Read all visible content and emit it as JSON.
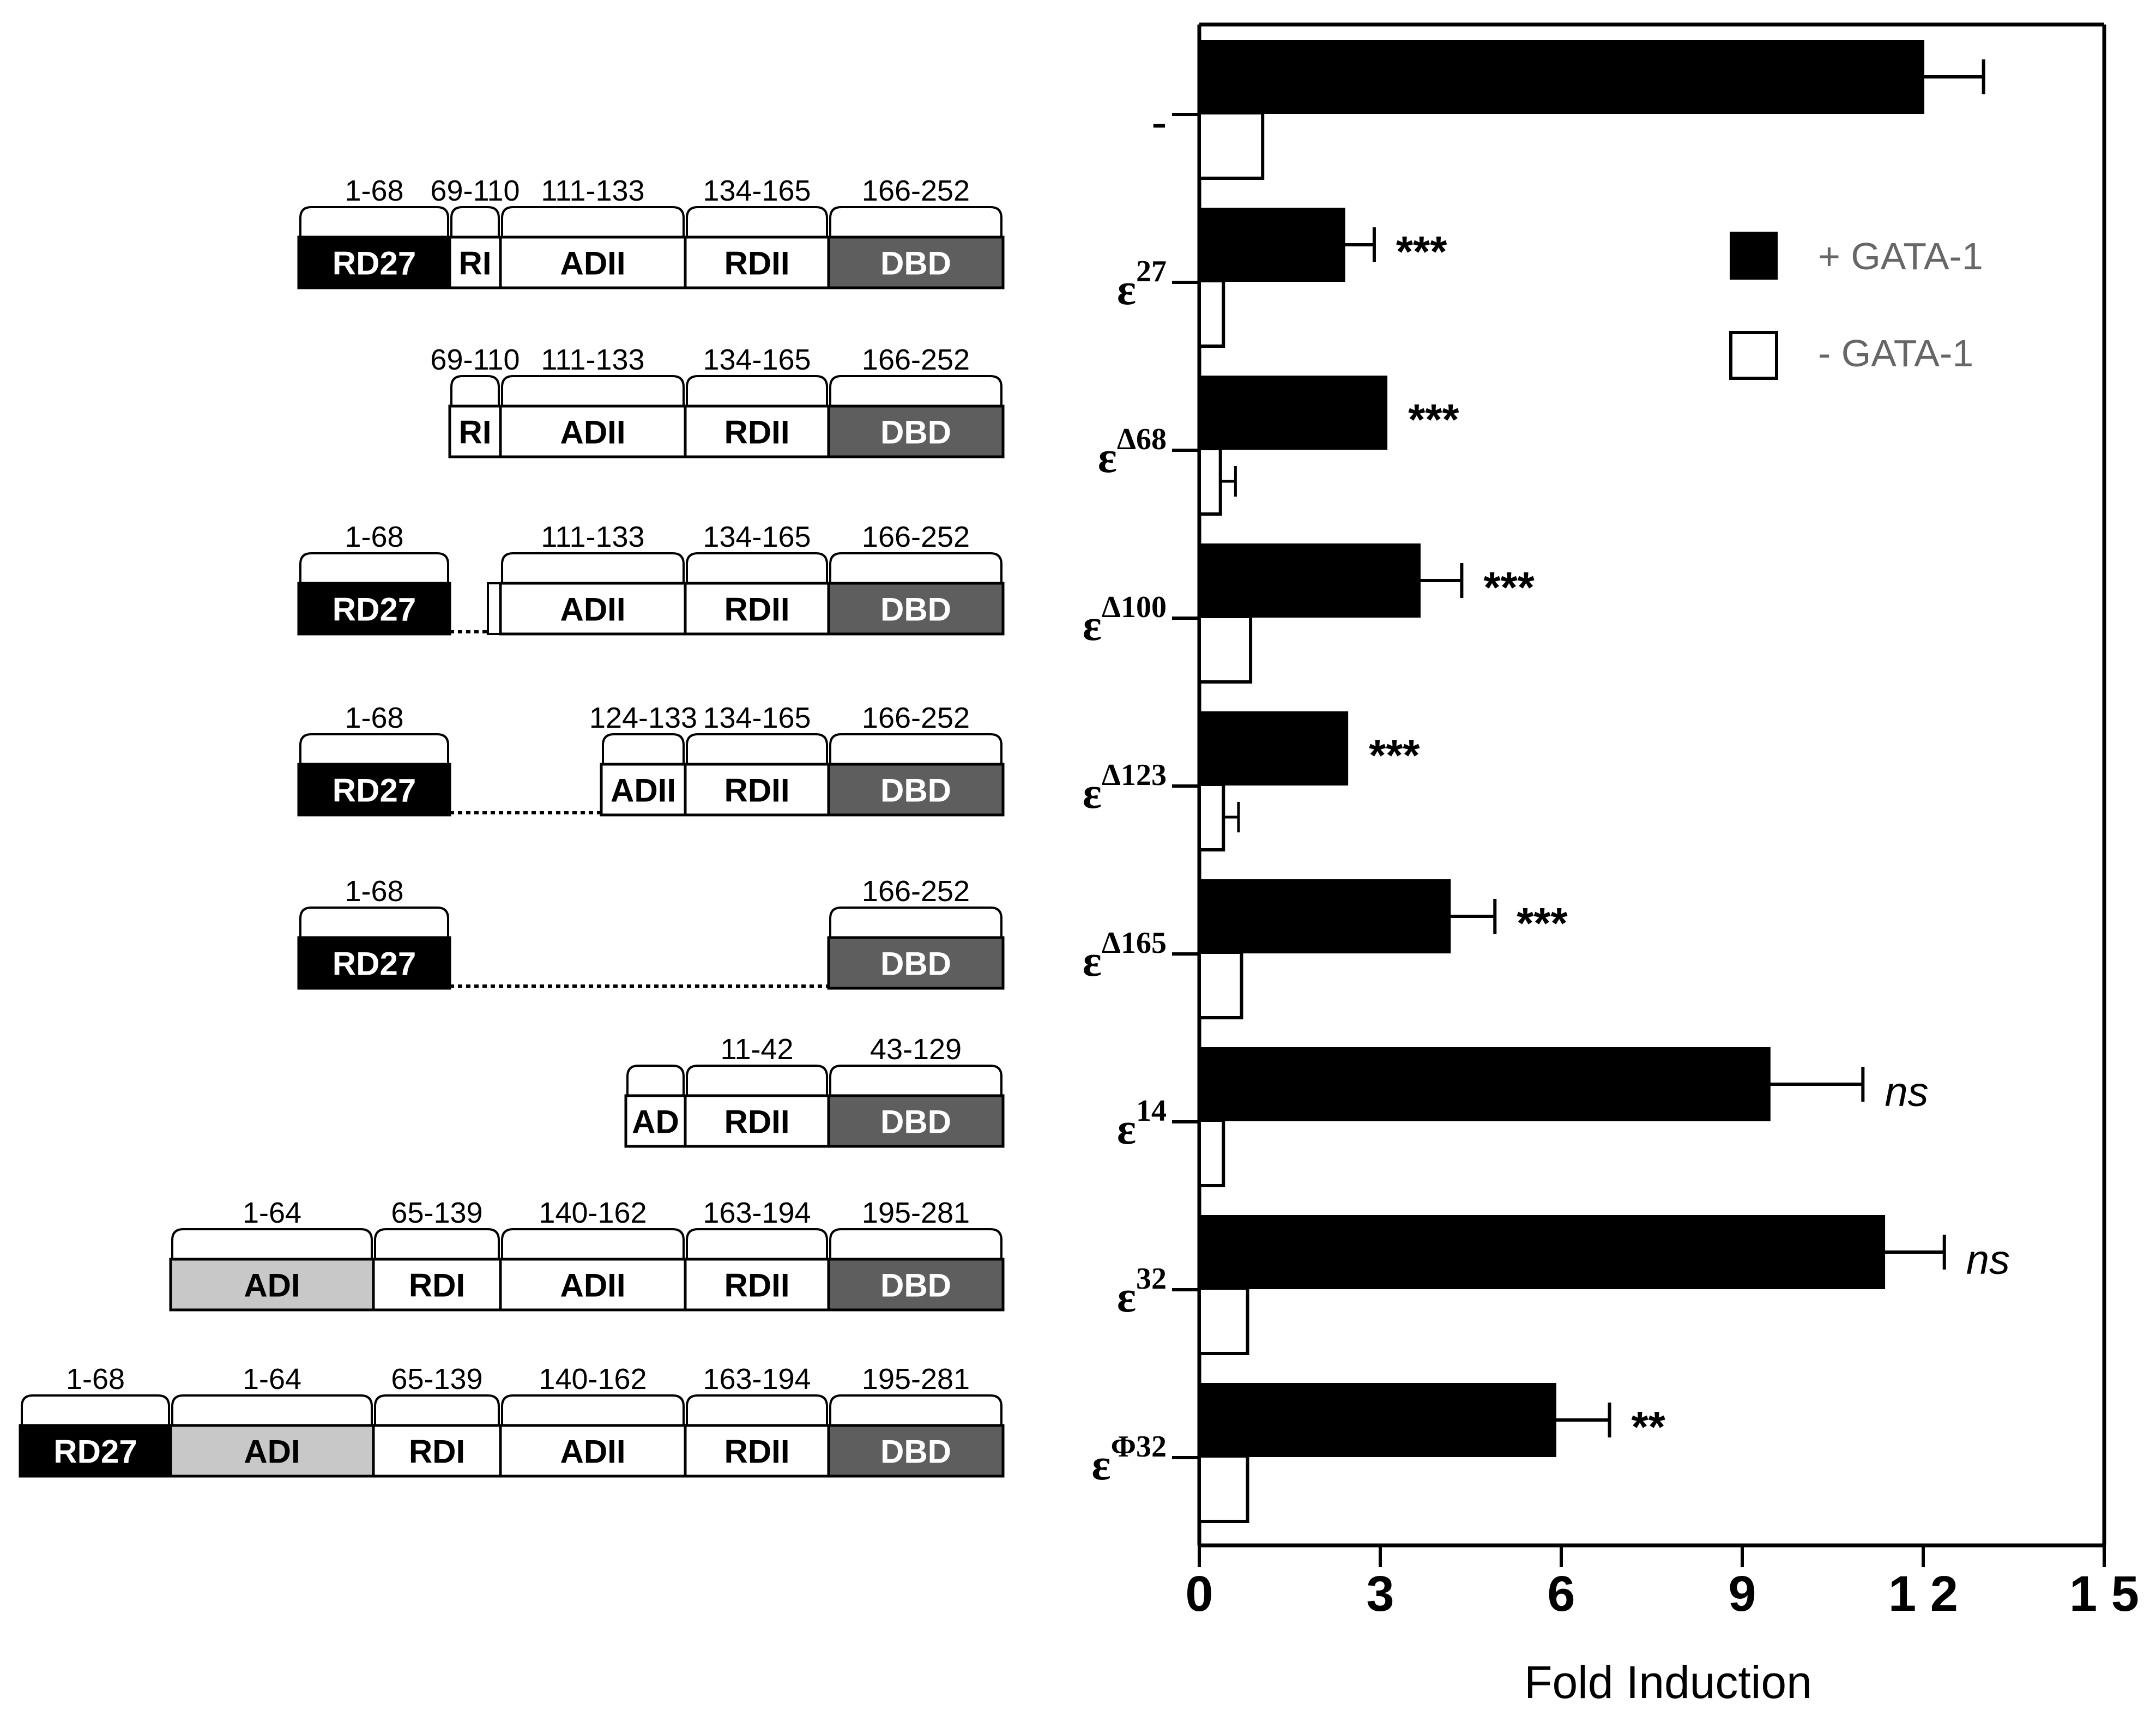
{
  "chart_data": {
    "type": "bar",
    "orientation": "horizontal",
    "xlabel": "Fold Induction",
    "xlim": [
      0,
      15
    ],
    "xticks": [
      "0",
      "3",
      "6",
      "9",
      "1 2",
      "1 5"
    ],
    "categories": [
      {
        "base": "-",
        "sup": ""
      },
      {
        "base": "ε",
        "sup": "27"
      },
      {
        "base": "ε",
        "sup": "Δ68"
      },
      {
        "base": "ε",
        "sup": "Δ100"
      },
      {
        "base": "ε",
        "sup": "Δ123"
      },
      {
        "base": "ε",
        "sup": "Δ165"
      },
      {
        "base": "ε",
        "sup": "14"
      },
      {
        "base": "ε",
        "sup": "32"
      },
      {
        "base": "ε",
        "sup": "Φ32"
      }
    ],
    "series": [
      {
        "name": "+ GATA-1",
        "fill": "#000000",
        "values": [
          12.0,
          2.4,
          3.1,
          3.65,
          2.45,
          4.15,
          9.45,
          11.35,
          5.9
        ],
        "errors": [
          1.0,
          0.5,
          0.0,
          0.7,
          0.0,
          0.75,
          1.55,
          1.0,
          0.9
        ]
      },
      {
        "name": "- GATA-1",
        "fill": "#ffffff",
        "values": [
          1.05,
          0.4,
          0.35,
          0.85,
          0.4,
          0.7,
          0.4,
          0.8,
          0.8
        ],
        "errors": [
          0,
          0,
          0.25,
          0,
          0.25,
          0,
          0,
          0,
          0
        ]
      }
    ],
    "annotations": [
      "",
      "***",
      "***",
      "***",
      "***",
      "***",
      "ns",
      "ns",
      "**"
    ],
    "annotation_italic": [
      false,
      false,
      false,
      false,
      false,
      false,
      true,
      true,
      false
    ],
    "legend_position": "top-right",
    "grid": false
  },
  "diagram": {
    "legend_colors": {
      "RD27": "#000000",
      "ADI": "#c8c8c8",
      "DBD": "#5e5e5e",
      "other": "#ffffff"
    },
    "constructs": [
      {
        "segments": [
          {
            "label": "RD27",
            "range": "1-68",
            "style": "black"
          },
          {
            "label": "RI",
            "range": "69-110",
            "style": "white"
          },
          {
            "label": "ADII",
            "range": "111-133",
            "style": "white"
          },
          {
            "label": "RDII",
            "range": "134-165",
            "style": "white"
          },
          {
            "label": "DBD",
            "range": "166-252",
            "style": "gray"
          }
        ]
      },
      {
        "segments": [
          {
            "label": "RI",
            "range": "69-110",
            "style": "white"
          },
          {
            "label": "ADII",
            "range": "111-133",
            "style": "white"
          },
          {
            "label": "RDII",
            "range": "134-165",
            "style": "white"
          },
          {
            "label": "DBD",
            "range": "166-252",
            "style": "gray"
          }
        ]
      },
      {
        "segments": [
          {
            "label": "RD27",
            "range": "1-68",
            "style": "black"
          },
          {
            "label": "ADII",
            "range": "111-133",
            "style": "white"
          },
          {
            "label": "RDII",
            "range": "134-165",
            "style": "white"
          },
          {
            "label": "DBD",
            "range": "166-252",
            "style": "gray"
          }
        ]
      },
      {
        "segments": [
          {
            "label": "RD27",
            "range": "1-68",
            "style": "black"
          },
          {
            "label": "ADII",
            "range": "124-133",
            "style": "white"
          },
          {
            "label": "RDII",
            "range": "134-165",
            "style": "white"
          },
          {
            "label": "DBD",
            "range": "166-252",
            "style": "gray"
          }
        ]
      },
      {
        "segments": [
          {
            "label": "RD27",
            "range": "1-68",
            "style": "black"
          },
          {
            "label": "DBD",
            "range": "166-252",
            "style": "gray"
          }
        ]
      },
      {
        "segments": [
          {
            "label": "AD",
            "range": "",
            "style": "white"
          },
          {
            "label": "RDII",
            "range": "11-42",
            "style": "white"
          },
          {
            "label": "DBD",
            "range": "43-129",
            "style": "gray"
          }
        ]
      },
      {
        "segments": [
          {
            "label": "ADI",
            "range": "1-64",
            "style": "light"
          },
          {
            "label": "RDI",
            "range": "65-139",
            "style": "white"
          },
          {
            "label": "ADII",
            "range": "140-162",
            "style": "white"
          },
          {
            "label": "RDII",
            "range": "163-194",
            "style": "white"
          },
          {
            "label": "DBD",
            "range": "195-281",
            "style": "gray"
          }
        ]
      },
      {
        "segments": [
          {
            "label": "RD27",
            "range": "1-68",
            "style": "black"
          },
          {
            "label": "ADI",
            "range": "1-64",
            "style": "light"
          },
          {
            "label": "RDI",
            "range": "65-139",
            "style": "white"
          },
          {
            "label": "ADII",
            "range": "140-162",
            "style": "white"
          },
          {
            "label": "RDII",
            "range": "163-194",
            "style": "white"
          },
          {
            "label": "DBD",
            "range": "195-281",
            "style": "gray"
          }
        ]
      }
    ]
  }
}
